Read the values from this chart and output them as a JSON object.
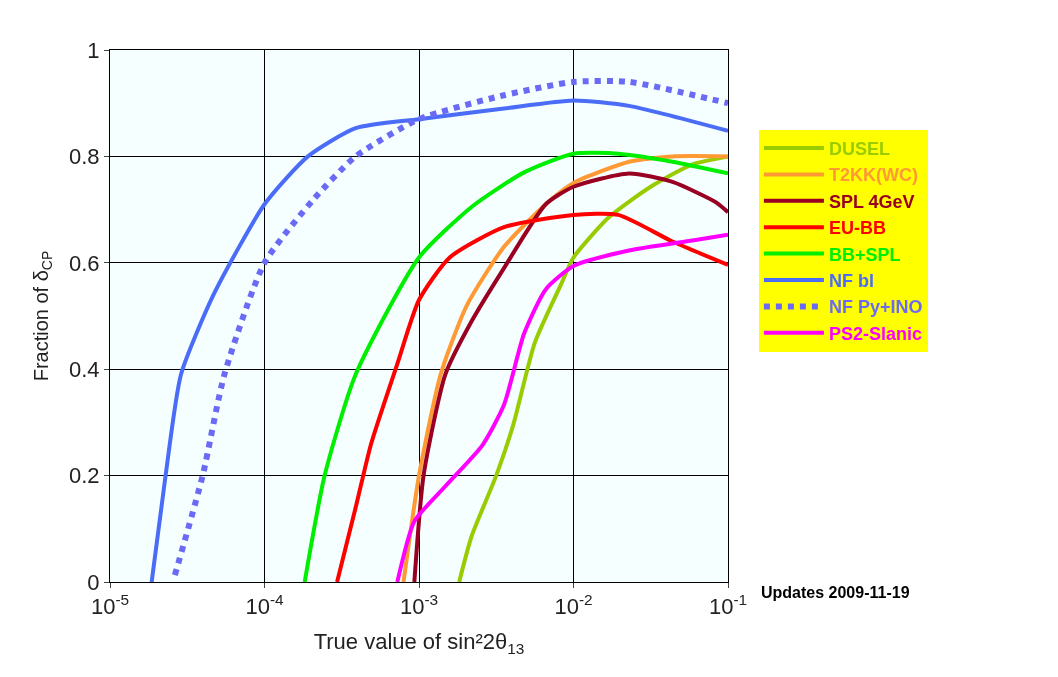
{
  "chart_data": {
    "type": "line",
    "xlabel": "True value of sin²2θ$_{13}$",
    "ylabel": "Fraction of δ$_{CP}$",
    "log": "x",
    "grid": true,
    "legend": "right",
    "marker": "none",
    "xlim": [
      1e-05,
      0.1
    ],
    "xticks": [
      {
        "value": 1e-05,
        "label": "10$^{-5}$"
      },
      {
        "value": 0.0001,
        "label": "10$^{-4}$"
      },
      {
        "value": 0.001,
        "label": "10$^{-3}$"
      },
      {
        "value": 0.01,
        "label": "10$^{-2}$"
      },
      {
        "value": 0.1,
        "label": "10$^{-1}$"
      }
    ],
    "ylim": [
      0,
      1
    ],
    "yticks": [
      0,
      0.2,
      0.4,
      0.6,
      0.8,
      1
    ],
    "annotations": [
      "Updates 2009-11-19"
    ],
    "series": [
      {
        "name": "DUSEL",
        "color": "#99cc00",
        "x": [
          0.00182,
          0.00219,
          0.00316,
          0.00407,
          0.00562,
          0.00832,
          0.01,
          0.017,
          0.0316,
          0.0589,
          0.1
        ],
        "values": [
          0,
          0.086,
          0.2,
          0.295,
          0.45,
          0.56,
          0.61,
          0.686,
          0.743,
          0.785,
          0.8
        ]
      },
      {
        "name": "T2KK(WC)",
        "color": "#ff9933",
        "x": [
          0.000794,
          0.001,
          0.00138,
          0.00204,
          0.00355,
          0.00661,
          0.01,
          0.0229,
          0.0437,
          0.1
        ],
        "values": [
          0,
          0.2,
          0.39,
          0.52,
          0.63,
          0.71,
          0.75,
          0.79,
          0.8,
          0.8
        ]
      },
      {
        "name": "SPL 4GeV",
        "color": "#990022",
        "x": [
          0.000933,
          0.00107,
          0.00148,
          0.00219,
          0.00355,
          0.00661,
          0.01,
          0.0229,
          0.0437,
          0.0832,
          0.1
        ],
        "values": [
          0,
          0.2,
          0.39,
          0.49,
          0.59,
          0.71,
          0.743,
          0.768,
          0.752,
          0.714,
          0.695
        ]
      },
      {
        "name": "EU-BB",
        "color": "#ff0000",
        "x": [
          0.000295,
          0.000389,
          0.00049,
          0.000724,
          0.001,
          0.00158,
          0.00355,
          0.01,
          0.0195,
          0.0437,
          0.1
        ],
        "values": [
          0,
          0.14,
          0.26,
          0.41,
          0.53,
          0.61,
          0.667,
          0.69,
          0.69,
          0.64,
          0.596
        ]
      },
      {
        "name": "BB+SPL",
        "color": "#00ee00",
        "x": [
          0.000182,
          0.000245,
          0.000389,
          0.001,
          0.00219,
          0.00479,
          0.01,
          0.0195,
          0.0437,
          0.1
        ],
        "values": [
          0,
          0.2,
          0.39,
          0.61,
          0.705,
          0.77,
          0.805,
          0.805,
          0.79,
          0.768
        ]
      },
      {
        "name": "NF bl",
        "color": "#4a6cf7",
        "x": [
          1.86e-05,
          2.29e-05,
          2.88e-05,
          4.68e-05,
          0.0001,
          0.000191,
          0.000389,
          0.001,
          0.00355,
          0.01,
          0.0229,
          0.1
        ],
        "values": [
          0,
          0.2,
          0.39,
          0.54,
          0.71,
          0.8,
          0.853,
          0.87,
          0.89,
          0.905,
          0.895,
          0.848
        ]
      },
      {
        "name": "NF Py+INO",
        "color": "#6a6af5",
        "line_style": "dotted",
        "x": [
          2.63e-05,
          3.98e-05,
          5.5e-05,
          0.0001,
          0.000209,
          0.000389,
          0.001,
          0.00355,
          0.01,
          0.0229,
          0.1
        ],
        "values": [
          0.013,
          0.2,
          0.39,
          0.6,
          0.72,
          0.8,
          0.87,
          0.915,
          0.94,
          0.94,
          0.9
        ]
      },
      {
        "name": "PS2-Slanic",
        "color": "#ff00ff",
        "x": [
          0.000724,
          0.000933,
          0.00148,
          0.00257,
          0.00355,
          0.00479,
          0.00661,
          0.01,
          0.0229,
          0.0589,
          0.1
        ],
        "values": [
          0,
          0.114,
          0.18,
          0.257,
          0.333,
          0.467,
          0.55,
          0.594,
          0.623,
          0.642,
          0.653
        ]
      }
    ]
  }
}
